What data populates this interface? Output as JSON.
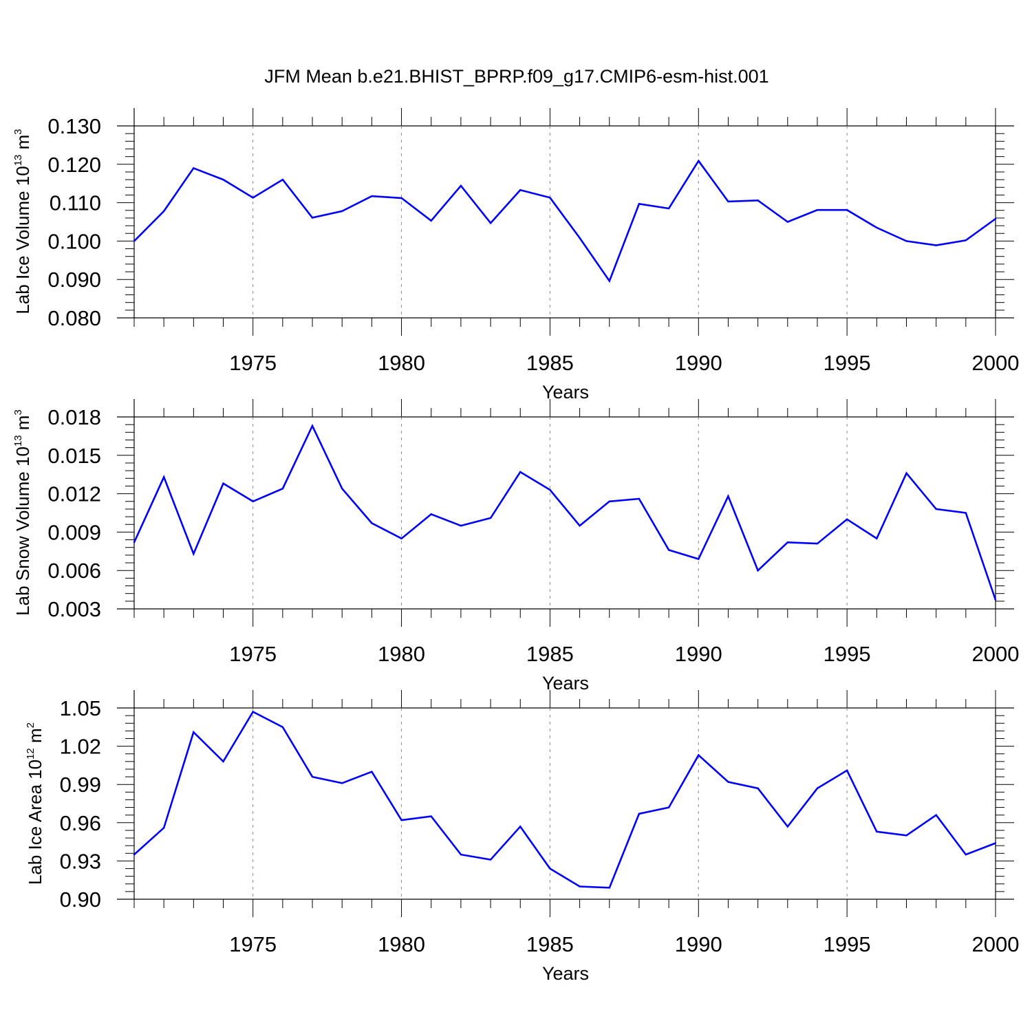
{
  "title": "JFM Mean b.e21.BHIST_BPRP.f09_g17.CMIP6-esm-hist.001",
  "colors": {
    "line": "#0000ff",
    "axis": "#000000",
    "grid": "#888888"
  },
  "chart_data": [
    {
      "type": "line",
      "ylabel": {
        "text": "Lab Ice Volume 10",
        "exponent": "13",
        "unit": "m",
        "unit_exponent": "3"
      },
      "xlabel": "Years",
      "xlim": [
        1971,
        2000
      ],
      "ylim": [
        0.08,
        0.13
      ],
      "yticks": [
        "0.080",
        "0.090",
        "0.100",
        "0.110",
        "0.120",
        "0.130"
      ],
      "xticks": [
        "1975",
        "1980",
        "1985",
        "1990",
        "1995",
        "2000"
      ],
      "grid": "dashed vertical at major x ticks",
      "x": [
        1971,
        1972,
        1973,
        1974,
        1975,
        1976,
        1977,
        1978,
        1979,
        1980,
        1981,
        1982,
        1983,
        1984,
        1985,
        1986,
        1987,
        1988,
        1989,
        1990,
        1991,
        1992,
        1993,
        1994,
        1995,
        1996,
        1997,
        1998,
        1999,
        2000
      ],
      "values": [
        0.1,
        0.1078,
        0.119,
        0.116,
        0.1113,
        0.116,
        0.1061,
        0.1078,
        0.1117,
        0.1112,
        0.1053,
        0.1144,
        0.1047,
        0.1133,
        0.1113,
        0.1008,
        0.0896,
        0.1097,
        0.1085,
        0.1209,
        0.1103,
        0.1106,
        0.105,
        0.1081,
        0.1081,
        0.1035,
        0.1,
        0.0989,
        0.1002,
        0.1058
      ]
    },
    {
      "type": "line",
      "ylabel": {
        "text": "Lab Snow Volume 10",
        "exponent": "13",
        "unit": "m",
        "unit_exponent": "3"
      },
      "xlabel": "Years",
      "xlim": [
        1971,
        2000
      ],
      "ylim": [
        0.003,
        0.018
      ],
      "yticks": [
        "0.003",
        "0.006",
        "0.009",
        "0.012",
        "0.015",
        "0.018"
      ],
      "xticks": [
        "1975",
        "1980",
        "1985",
        "1990",
        "1995",
        "2000"
      ],
      "grid": "dashed vertical at major x ticks",
      "x": [
        1971,
        1972,
        1973,
        1974,
        1975,
        1976,
        1977,
        1978,
        1979,
        1980,
        1981,
        1982,
        1983,
        1984,
        1985,
        1986,
        1987,
        1988,
        1989,
        1990,
        1991,
        1992,
        1993,
        1994,
        1995,
        1996,
        1997,
        1998,
        1999,
        2000
      ],
      "values": [
        0.0082,
        0.0133,
        0.0073,
        0.0128,
        0.0114,
        0.0124,
        0.0173,
        0.0124,
        0.0097,
        0.0085,
        0.0104,
        0.0095,
        0.0101,
        0.0137,
        0.0123,
        0.0095,
        0.0114,
        0.0116,
        0.0076,
        0.0069,
        0.0118,
        0.006,
        0.0082,
        0.0081,
        0.01,
        0.0085,
        0.0136,
        0.0108,
        0.0105,
        0.0037
      ]
    },
    {
      "type": "line",
      "ylabel": {
        "text": "Lab Ice Area 10",
        "exponent": "12",
        "unit": "m",
        "unit_exponent": "2"
      },
      "xlabel": "Years",
      "xlim": [
        1971,
        2000
      ],
      "ylim": [
        0.9,
        1.05
      ],
      "yticks": [
        "0.90",
        "0.93",
        "0.96",
        "0.99",
        "1.02",
        "1.05"
      ],
      "xticks": [
        "1975",
        "1980",
        "1985",
        "1990",
        "1995",
        "2000"
      ],
      "grid": "dashed vertical at major x ticks",
      "x": [
        1971,
        1972,
        1973,
        1974,
        1975,
        1976,
        1977,
        1978,
        1979,
        1980,
        1981,
        1982,
        1983,
        1984,
        1985,
        1986,
        1987,
        1988,
        1989,
        1990,
        1991,
        1992,
        1993,
        1994,
        1995,
        1996,
        1997,
        1998,
        1999,
        2000
      ],
      "values": [
        0.935,
        0.956,
        1.031,
        1.008,
        1.047,
        1.035,
        0.996,
        0.991,
        1.0,
        0.962,
        0.965,
        0.935,
        0.931,
        0.957,
        0.924,
        0.91,
        0.909,
        0.967,
        0.972,
        1.013,
        0.992,
        0.987,
        0.957,
        0.987,
        1.001,
        0.953,
        0.95,
        0.966,
        0.935,
        0.944
      ]
    }
  ]
}
